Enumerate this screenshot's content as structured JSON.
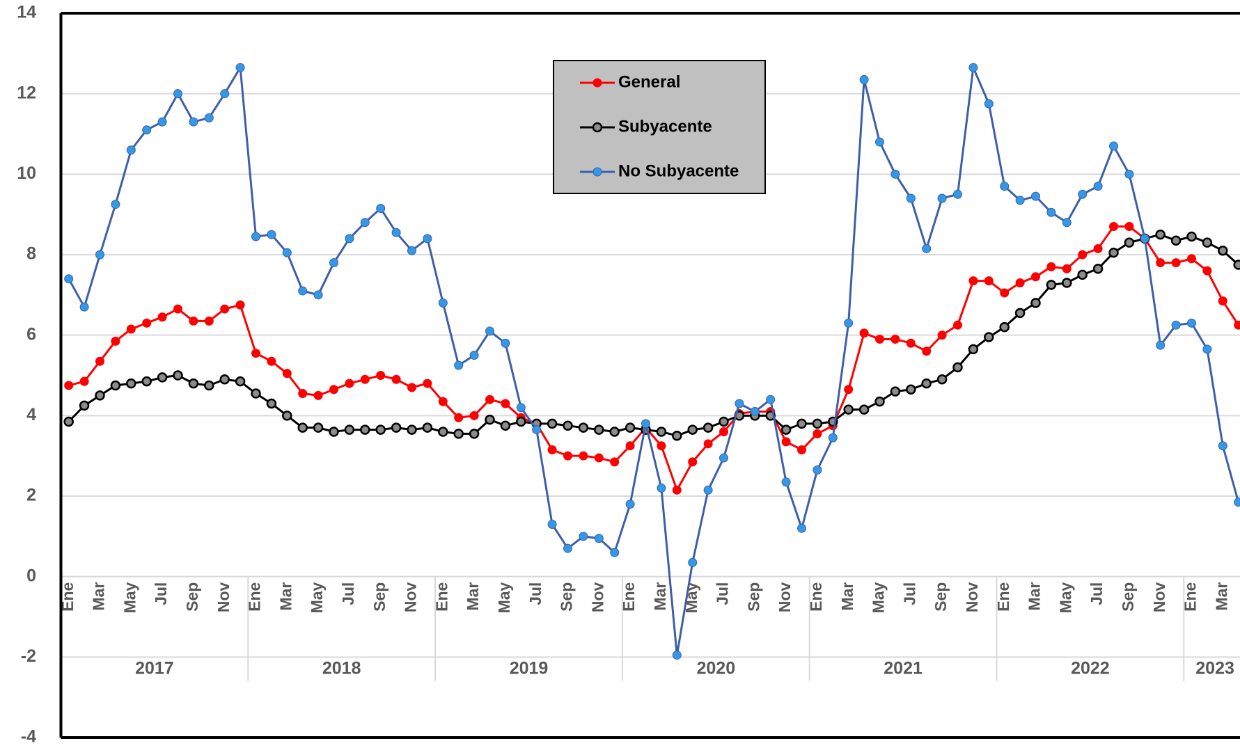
{
  "chart_data": {
    "type": "line",
    "categories": [
      "Ene",
      null,
      "Mar",
      null,
      "May",
      null,
      "Jul",
      null,
      "Sep",
      null,
      "Nov",
      null,
      "Ene",
      null,
      "Mar",
      null,
      "May",
      null,
      "Jul",
      null,
      "Sep",
      null,
      "Nov",
      null,
      "Ene",
      null,
      "Mar",
      null,
      "May",
      null,
      "Jul",
      null,
      "Sep",
      null,
      "Nov",
      null,
      "Ene",
      null,
      "Mar",
      null,
      "May",
      null,
      "Jul",
      null,
      "Sep",
      null,
      "Nov",
      null,
      "Ene",
      null,
      "Mar",
      null,
      "May",
      null,
      "Jul",
      null,
      "Sep",
      null,
      "Nov",
      null,
      "Ene",
      null,
      "Mar",
      null,
      "May",
      null,
      "Jul",
      null,
      "Sep",
      null,
      "Nov",
      null,
      "Ene",
      null,
      "Mar",
      null
    ],
    "year_labels": [
      "2017",
      "2018",
      "2019",
      "2020",
      "2021",
      "2022",
      "2023"
    ],
    "series": [
      {
        "name": "General",
        "color": "#ff0000",
        "marker_color": "#ff0000",
        "values": [
          4.75,
          4.85,
          5.35,
          5.85,
          6.15,
          6.3,
          6.45,
          6.65,
          6.35,
          6.35,
          6.65,
          6.75,
          5.55,
          5.35,
          5.05,
          4.55,
          4.5,
          4.65,
          4.8,
          4.9,
          5.0,
          4.9,
          4.7,
          4.8,
          4.35,
          3.95,
          4.0,
          4.4,
          4.3,
          3.95,
          3.8,
          3.15,
          3.0,
          3.0,
          2.95,
          2.85,
          3.25,
          3.7,
          3.25,
          2.15,
          2.85,
          3.3,
          3.6,
          4.05,
          4.1,
          4.1,
          3.35,
          3.15,
          3.55,
          3.75,
          4.65,
          6.05,
          5.9,
          5.9,
          5.8,
          5.6,
          6.0,
          6.25,
          7.35,
          7.35,
          7.05,
          7.3,
          7.45,
          7.7,
          7.65,
          8.0,
          8.15,
          8.7,
          8.7,
          8.4,
          7.8,
          7.8,
          7.9,
          7.6,
          6.85,
          6.25
        ]
      },
      {
        "name": "Subyacente",
        "color": "#000000",
        "marker_color": "#8c8c8c",
        "values": [
          3.85,
          4.25,
          4.5,
          4.75,
          4.8,
          4.85,
          4.95,
          5.0,
          4.8,
          4.75,
          4.9,
          4.85,
          4.55,
          4.3,
          4.0,
          3.7,
          3.7,
          3.6,
          3.65,
          3.65,
          3.65,
          3.7,
          3.65,
          3.7,
          3.6,
          3.55,
          3.55,
          3.9,
          3.75,
          3.85,
          3.8,
          3.8,
          3.75,
          3.7,
          3.65,
          3.6,
          3.7,
          3.65,
          3.6,
          3.5,
          3.65,
          3.7,
          3.85,
          4.0,
          4.0,
          4.0,
          3.65,
          3.8,
          3.8,
          3.85,
          4.15,
          4.15,
          4.35,
          4.6,
          4.65,
          4.8,
          4.9,
          5.2,
          5.65,
          5.95,
          6.2,
          6.55,
          6.8,
          7.25,
          7.3,
          7.5,
          7.65,
          8.05,
          8.3,
          8.4,
          8.5,
          8.35,
          8.45,
          8.3,
          8.1,
          7.75
        ]
      },
      {
        "name": "No Subyacente",
        "color": "#3d5fa8",
        "marker_color": "#3399e6",
        "values": [
          7.4,
          6.7,
          8.0,
          9.25,
          10.6,
          11.1,
          11.3,
          12.0,
          11.3,
          11.4,
          12.0,
          12.65,
          8.45,
          8.5,
          8.05,
          7.1,
          7.0,
          7.8,
          8.4,
          8.8,
          9.15,
          8.55,
          8.1,
          8.4,
          6.8,
          5.25,
          5.5,
          6.1,
          5.8,
          4.2,
          3.65,
          1.3,
          0.7,
          1.0,
          0.95,
          0.6,
          1.8,
          3.8,
          2.2,
          -1.95,
          0.35,
          2.15,
          2.95,
          4.3,
          4.1,
          4.4,
          2.35,
          1.2,
          2.65,
          3.45,
          6.3,
          12.35,
          10.8,
          10.0,
          9.4,
          8.15,
          9.4,
          9.5,
          12.65,
          11.75,
          9.7,
          9.35,
          9.45,
          9.05,
          8.8,
          9.5,
          9.7,
          10.7,
          10.0,
          8.4,
          5.75,
          6.25,
          6.3,
          5.65,
          3.25,
          1.85
        ]
      }
    ],
    "ylim": [
      -4,
      14
    ],
    "yticks": [
      -4,
      -2,
      0,
      2,
      4,
      6,
      8,
      10,
      12,
      14
    ],
    "grid": true,
    "legend_position": "top-center"
  }
}
